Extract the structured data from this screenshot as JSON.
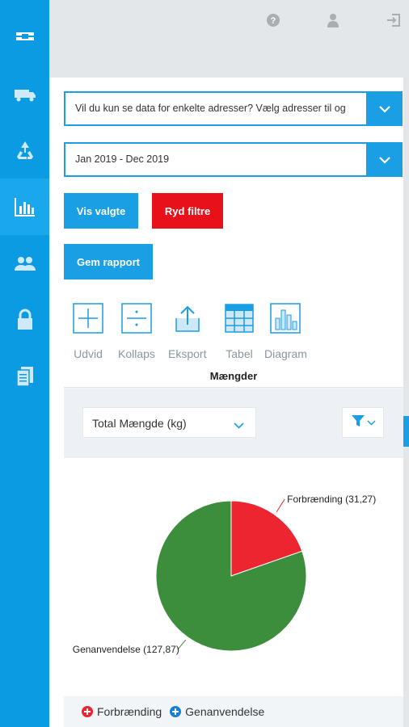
{
  "sidebar": {
    "items": [
      {
        "icon": "logo-icon"
      },
      {
        "icon": "truck-icon"
      },
      {
        "icon": "recycle-icon"
      },
      {
        "icon": "bar-chart-icon",
        "active": true
      },
      {
        "icon": "users-icon"
      },
      {
        "icon": "lock-icon"
      },
      {
        "icon": "documents-icon"
      }
    ]
  },
  "topbar": {
    "icons": [
      "help-icon",
      "user-icon",
      "logout-icon"
    ]
  },
  "filters": {
    "address_placeholder": "Vil du kun se data for enkelte adresser? Vælg adresser til og",
    "date_range": "Jan 2019 - Dec 2019"
  },
  "buttons": {
    "show_selected": "Vis valgte",
    "clear_filters": "Ryd filtre",
    "save_report": "Gem rapport"
  },
  "tools": [
    {
      "label": "Udvid",
      "icon": "expand-icon"
    },
    {
      "label": "Kollaps",
      "icon": "collapse-icon"
    },
    {
      "label": "Eksport",
      "icon": "export-icon"
    },
    {
      "label": "Tabel",
      "icon": "table-icon"
    },
    {
      "label": "Diagram",
      "icon": "diagram-icon"
    }
  ],
  "panel": {
    "title": "Mængder",
    "measure": "Total Mængde (kg)"
  },
  "colors": {
    "primary": "#1a9ee4",
    "sidebar": "#0b9be2",
    "danger": "#e8111a",
    "forbraending": "#ec2530",
    "genanvendelse": "#3d8e3c"
  },
  "chart_data": {
    "type": "pie",
    "categories": [
      "Forbrænding",
      "Genanvendelse"
    ],
    "values": [
      31.27,
      127.87
    ],
    "data_labels": [
      "Forbrænding (31,27)",
      "Genanvendelse (127,87)"
    ],
    "colors": [
      "#ec2530",
      "#3d8e3c"
    ],
    "legend": [
      "Forbrænding",
      "Genanvendelse"
    ],
    "legend_position": "bottom"
  }
}
